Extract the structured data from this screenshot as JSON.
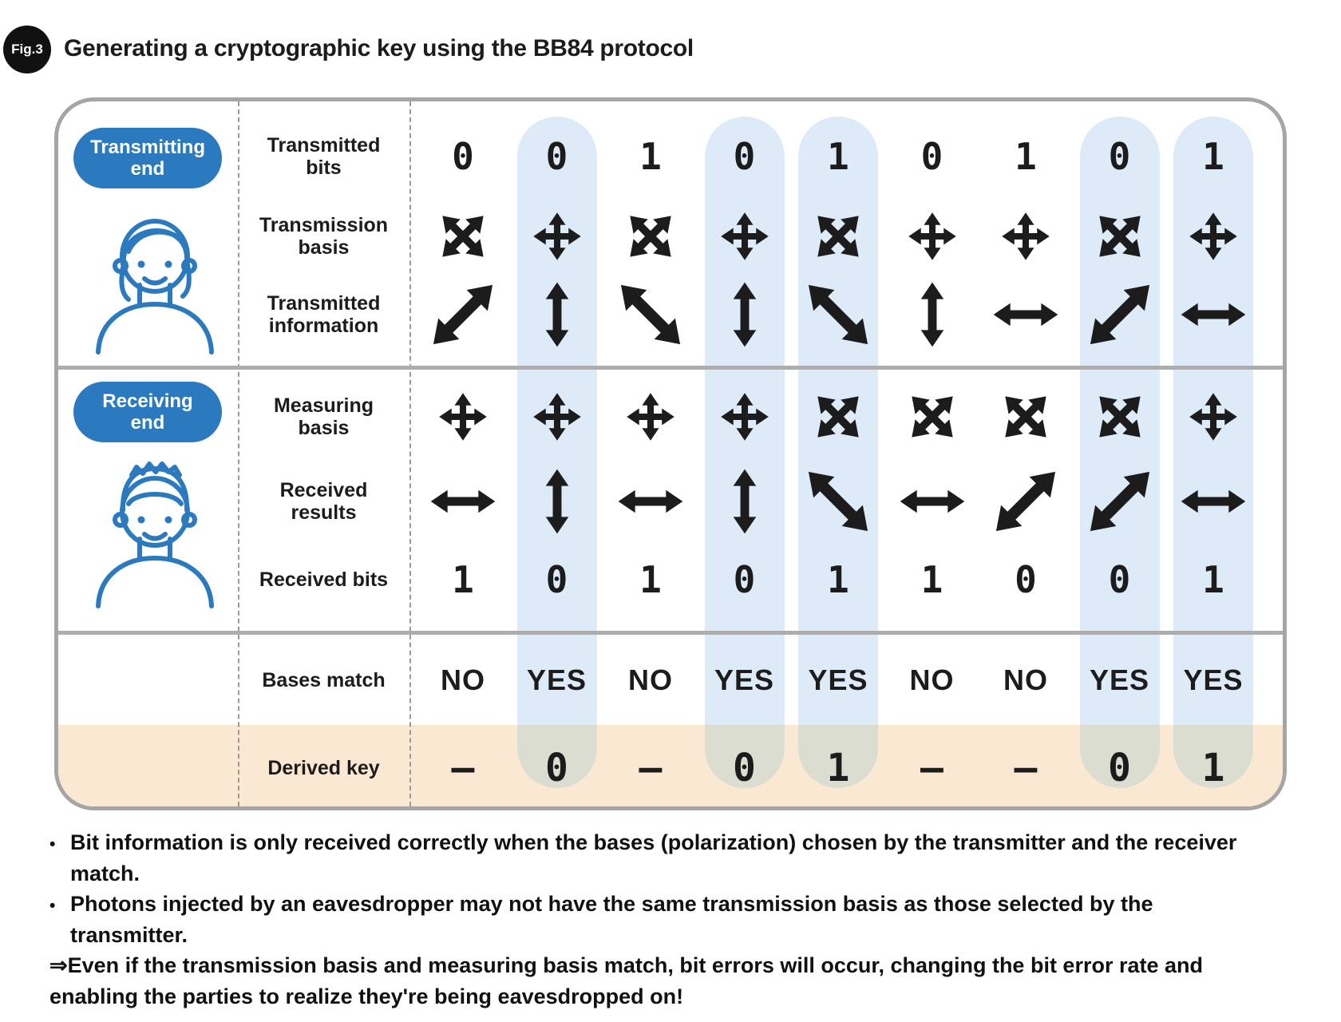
{
  "figure_label": "Fig.3",
  "title": "Generating a cryptographic key using the BB84 protocol",
  "transmitter": {
    "label": "Transmitting\nend",
    "person": "woman-face"
  },
  "receiver": {
    "label": "Receiving\nend",
    "person": "man-face"
  },
  "row_labels": {
    "transmitted_bits": "Transmitted\nbits",
    "transmission_basis": "Transmission\nbasis",
    "transmitted_information": "Transmitted\ninformation",
    "measuring_basis": "Measuring\nbasis",
    "received_results": "Received\nresults",
    "received_bits": "Received bits",
    "bases_match": "Bases match",
    "derived_key": "Derived key"
  },
  "columns": [
    {
      "highlight": false,
      "transmitted_bit": "0",
      "transmission_basis": "diagonal-cross",
      "transmitted_information": "diagonal-ne",
      "measuring_basis": "plus-cross",
      "received_result": "horizontal",
      "received_bit": "1",
      "bases_match": "NO",
      "derived_key": "–"
    },
    {
      "highlight": true,
      "transmitted_bit": "0",
      "transmission_basis": "plus-cross",
      "transmitted_information": "vertical",
      "measuring_basis": "plus-cross",
      "received_result": "vertical",
      "received_bit": "0",
      "bases_match": "YES",
      "derived_key": "0"
    },
    {
      "highlight": false,
      "transmitted_bit": "1",
      "transmission_basis": "diagonal-cross",
      "transmitted_information": "diagonal-nw",
      "measuring_basis": "plus-cross",
      "received_result": "horizontal",
      "received_bit": "1",
      "bases_match": "NO",
      "derived_key": "–"
    },
    {
      "highlight": true,
      "transmitted_bit": "0",
      "transmission_basis": "plus-cross",
      "transmitted_information": "vertical",
      "measuring_basis": "plus-cross",
      "received_result": "vertical",
      "received_bit": "0",
      "bases_match": "YES",
      "derived_key": "0"
    },
    {
      "highlight": true,
      "transmitted_bit": "1",
      "transmission_basis": "diagonal-cross",
      "transmitted_information": "diagonal-nw",
      "measuring_basis": "diagonal-cross",
      "received_result": "diagonal-nw",
      "received_bit": "1",
      "bases_match": "YES",
      "derived_key": "1"
    },
    {
      "highlight": false,
      "transmitted_bit": "0",
      "transmission_basis": "plus-cross",
      "transmitted_information": "vertical",
      "measuring_basis": "diagonal-cross",
      "received_result": "horizontal",
      "received_bit": "1",
      "bases_match": "NO",
      "derived_key": "–"
    },
    {
      "highlight": false,
      "transmitted_bit": "1",
      "transmission_basis": "plus-cross",
      "transmitted_information": "horizontal",
      "measuring_basis": "diagonal-cross",
      "received_result": "diagonal-ne",
      "received_bit": "0",
      "bases_match": "NO",
      "derived_key": "–"
    },
    {
      "highlight": true,
      "transmitted_bit": "0",
      "transmission_basis": "diagonal-cross",
      "transmitted_information": "diagonal-ne",
      "measuring_basis": "diagonal-cross",
      "received_result": "diagonal-ne",
      "received_bit": "0",
      "bases_match": "YES",
      "derived_key": "0"
    },
    {
      "highlight": true,
      "transmitted_bit": "1",
      "transmission_basis": "plus-cross",
      "transmitted_information": "horizontal",
      "measuring_basis": "plus-cross",
      "received_result": "horizontal",
      "received_bit": "1",
      "bases_match": "YES",
      "derived_key": "1"
    }
  ],
  "notes": [
    {
      "bullet": "•",
      "text": "Bit information is only received correctly when the bases (polarization) chosen by the transmitter and the receiver match."
    },
    {
      "bullet": "•",
      "text": "Photons injected by an eavesdropper may not have the same transmission basis as those selected by the transmitter.",
      "continuation": "⇒Even if the transmission basis and measuring basis match, bit errors will occur, changing the bit error rate and enabling the parties to realize they're being eavesdropped on!"
    }
  ],
  "colors": {
    "accent_blue": "#2b7abf",
    "highlight_blue": "#dcebf7",
    "highlight_over_key_row": "#dcddd1",
    "derived_key_band": "#fbe8d2",
    "table_border": "#a5a5a5",
    "arrow_black": "#1c1c1c"
  }
}
